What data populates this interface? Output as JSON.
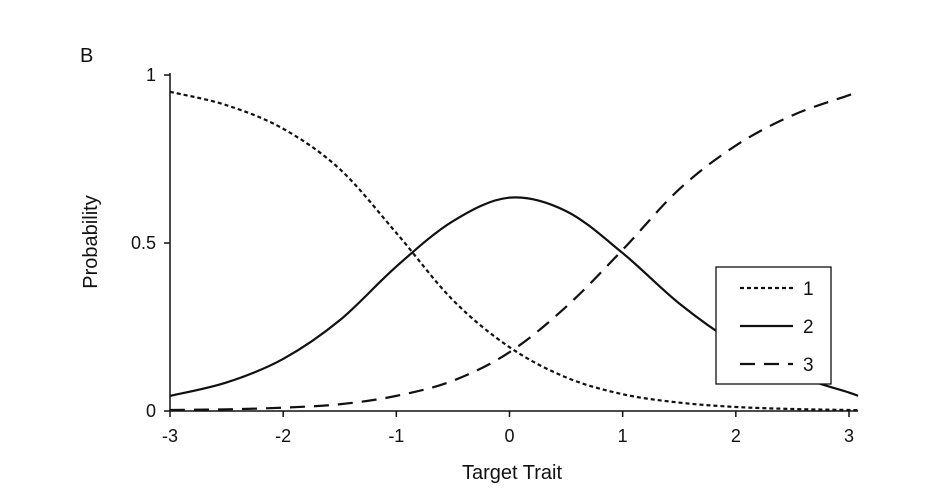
{
  "panel_label": "B",
  "chart_data": {
    "type": "line",
    "title": "",
    "xlabel": "Target Trait",
    "ylabel": "Probability",
    "xlim": [
      -3,
      3.08
    ],
    "ylim": [
      0,
      1
    ],
    "x_ticks": [
      -3,
      -2,
      -1,
      0,
      1,
      2,
      3
    ],
    "x_tick_labels": [
      "-3",
      "-2",
      "-1",
      "0",
      "1",
      "2",
      "3"
    ],
    "y_ticks": [
      0,
      0.5,
      1
    ],
    "y_tick_labels": [
      "0",
      "0.5",
      "1"
    ],
    "grid": false,
    "legend_position": "right",
    "x": [
      -3,
      -2.5,
      -2,
      -1.5,
      -1,
      -0.5,
      0,
      0.5,
      1,
      1.5,
      2,
      2.5,
      3,
      3.08
    ],
    "series": [
      {
        "name": "1",
        "style": "dotted",
        "values": [
          0.95,
          0.91,
          0.84,
          0.72,
          0.53,
          0.33,
          0.19,
          0.1,
          0.05,
          0.025,
          0.012,
          0.006,
          0.003,
          0.003
        ]
      },
      {
        "name": "2",
        "style": "solid",
        "values": [
          0.045,
          0.085,
          0.155,
          0.27,
          0.43,
          0.565,
          0.635,
          0.595,
          0.47,
          0.32,
          0.2,
          0.11,
          0.055,
          0.045
        ]
      },
      {
        "name": "3",
        "style": "dashed",
        "values": [
          0.003,
          0.005,
          0.01,
          0.02,
          0.045,
          0.09,
          0.175,
          0.31,
          0.48,
          0.66,
          0.79,
          0.88,
          0.94,
          0.95
        ]
      }
    ]
  }
}
